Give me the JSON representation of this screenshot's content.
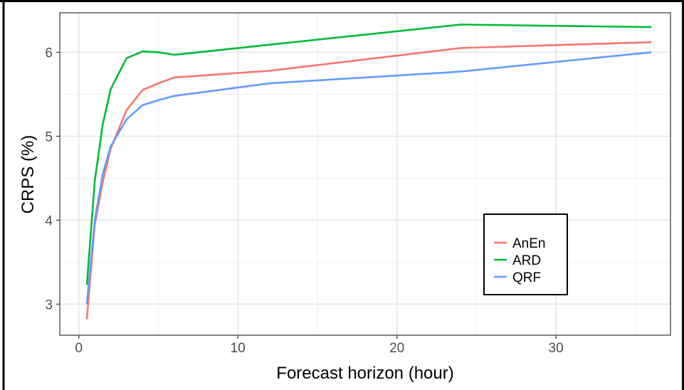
{
  "chart_data": {
    "type": "line",
    "xlabel": "Forecast horizon (hour)",
    "ylabel": "CRPS (%)",
    "xlim": [
      -1.2,
      37.2
    ],
    "ylim": [
      2.63,
      6.47
    ],
    "x_ticks": [
      0,
      10,
      20,
      30
    ],
    "y_ticks": [
      3,
      4,
      5,
      6
    ],
    "x_minor_ticks": [
      5,
      15,
      25,
      35
    ],
    "y_minor_ticks": [
      3.5,
      4.5,
      5.5
    ],
    "grid": true,
    "legend_position": "bottom-right",
    "series": [
      {
        "name": "AnEn",
        "color": "#f8766d",
        "x": [
          0.5,
          1,
          1.5,
          2,
          3,
          4,
          5,
          6,
          12,
          24,
          36
        ],
        "y": [
          2.82,
          3.95,
          4.45,
          4.85,
          5.31,
          5.55,
          5.63,
          5.7,
          5.78,
          6.05,
          6.12
        ]
      },
      {
        "name": "ARD",
        "color": "#00ba38",
        "x": [
          0.5,
          1,
          1.5,
          2,
          3,
          4,
          5,
          6,
          12,
          24,
          36
        ],
        "y": [
          3.23,
          4.47,
          5.14,
          5.56,
          5.93,
          6.01,
          6.0,
          5.97,
          6.09,
          6.33,
          6.3
        ]
      },
      {
        "name": "QRF",
        "color": "#619cff",
        "x": [
          0.5,
          1,
          1.5,
          2,
          3,
          4,
          5,
          6,
          12,
          24,
          36
        ],
        "y": [
          3.0,
          4.0,
          4.55,
          4.88,
          5.2,
          5.37,
          5.43,
          5.48,
          5.63,
          5.77,
          6.0
        ]
      }
    ]
  }
}
